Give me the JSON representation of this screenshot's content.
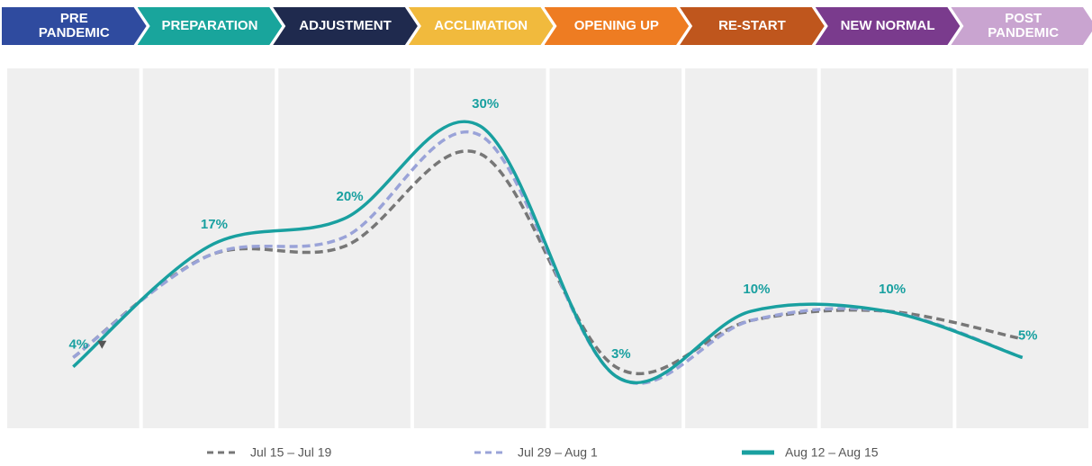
{
  "chart_data": {
    "type": "line",
    "categories": [
      "PRE PANDEMIC",
      "PREPARATION",
      "ADJUSTMENT",
      "ACCLIMATION",
      "OPENING UP",
      "RE-START",
      "NEW NORMAL",
      "POST PANDEMIC"
    ],
    "category_colors": [
      "#2f4b9f",
      "#19a59c",
      "#1f2a4e",
      "#f1ba3d",
      "#ee7c22",
      "#bf561d",
      "#7a3b8d",
      "#c9a4d0"
    ],
    "series": [
      {
        "name": "Jul 15 – Jul 19",
        "color": "#777777",
        "dash": true,
        "values": [
          5,
          16,
          17,
          27,
          4,
          9,
          10,
          7
        ]
      },
      {
        "name": "Jul 29 – Aug 1",
        "color": "#9aa3d8",
        "dash": true,
        "values": [
          5,
          16,
          18,
          29,
          3,
          9,
          10,
          5
        ]
      },
      {
        "name": "Aug 12 – Aug 15",
        "color": "#19a0a0",
        "dash": false,
        "values": [
          4,
          17,
          20,
          30,
          3,
          10,
          10,
          5
        ],
        "value_labels": [
          "4%",
          "17%",
          "20%",
          "30%",
          "3%",
          "10%",
          "10%",
          "5%"
        ]
      }
    ],
    "grid": false
  }
}
